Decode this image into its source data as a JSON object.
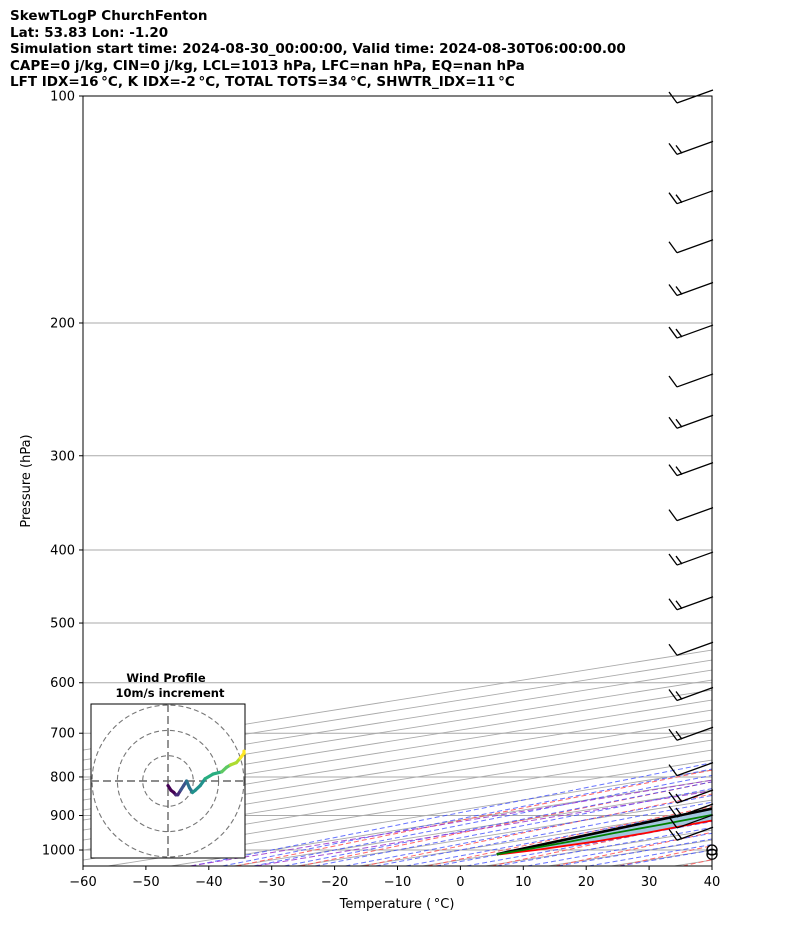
{
  "header": {
    "lines": [
      "SkewTLogP ChurchFenton",
      "Lat: 53.83   Lon: -1.20",
      "Simulation start time: 2024-08-30_00:00:00, Valid time: 2024-08-30T06:00:00.00",
      "CAPE=0 j/kg, CIN=0 j/kg, LCL=1013 hPa, LFC=nan hPa, EQ=nan hPa",
      "LFT IDX=16 °C, K IDX=-2 °C, TOTAL TOTS=34 °C, SHWTR_IDX=11 °C"
    ]
  },
  "chart_data": [
    {
      "type": "line",
      "subtype": "skew-T log-P",
      "xlabel": "Temperature ( °C)",
      "ylabel": "Pressure (hPa)",
      "xlim": [
        -60,
        40
      ],
      "ylim": [
        1050,
        100
      ],
      "y_scale": "log",
      "x_ticks": [
        -60,
        -50,
        -40,
        -30,
        -20,
        -10,
        0,
        10,
        20,
        30,
        40
      ],
      "x_tick_labels": [
        "−60",
        "−50",
        "−40",
        "−30",
        "−20",
        "−10",
        "0",
        "10",
        "20",
        "30",
        "40"
      ],
      "y_ticks": [
        1000,
        900,
        800,
        700,
        600,
        500,
        400,
        300,
        200,
        100
      ],
      "grid": true,
      "colors": {
        "temperature": "#ff0000",
        "dewpoint": "#008000",
        "parcel": "#000000",
        "shading": "#a3c6e0",
        "dry_adiabat": "#ff5555",
        "moist_adiabat": "#3344ff",
        "mixing_ratio": "#9933cc",
        "isotherm": "#aaaaaa"
      },
      "series": [
        {
          "name": "temperature",
          "pressure": [
            1013,
            1000,
            975,
            950,
            925,
            900,
            850,
            800,
            750,
            700,
            650,
            600,
            550,
            500,
            450,
            400,
            350,
            300,
            275,
            250,
            225,
            200,
            175,
            150,
            125,
            100
          ],
          "values": [
            10.5,
            12.0,
            13.0,
            12.5,
            11.0,
            10.0,
            8.5,
            7.0,
            5.5,
            3.6,
            0.5,
            -2.6,
            -6.0,
            -10.0,
            -15.0,
            -21.5,
            -28.5,
            -37.0,
            -42.5,
            -47.5,
            -52.5,
            -57.0,
            -60.5,
            -65.0,
            -70.5,
            -75.0
          ]
        },
        {
          "name": "dewpoint",
          "pressure": [
            1013,
            1000,
            975,
            950,
            925,
            900,
            850,
            800,
            750,
            700,
            650,
            600,
            550,
            500,
            450,
            400,
            350,
            300,
            275,
            250,
            225,
            200,
            175,
            150,
            125,
            100
          ],
          "values": [
            10.0,
            10.0,
            9.0,
            7.5,
            6.5,
            5.0,
            2.0,
            -3.0,
            -14.0,
            -24.0,
            -31.0,
            -33.0,
            -40.0,
            -50.0,
            -53.0,
            -47.0,
            -56.0,
            -59.0,
            -56.0,
            -64.0,
            -72.0,
            -78.5,
            -86.0,
            -95.0,
            -102.0,
            -105.0
          ]
        },
        {
          "name": "parcel",
          "pressure": [
            1013,
            1000,
            950,
            900,
            850,
            800,
            750,
            700,
            650,
            600,
            550,
            500,
            450,
            400,
            350,
            300,
            250,
            200,
            150,
            100
          ],
          "values": [
            10.0,
            8.9,
            4.7,
            0.3,
            -4.3,
            -9.2,
            -14.4,
            -20.0,
            -26.0,
            -32.5,
            -39.6,
            -47.4,
            -56.0,
            -65.5,
            -76.3,
            -88.6,
            -103.1,
            -120.6,
            -142.9,
            -174.5
          ]
        }
      ],
      "wind_barb_pressures": [
        100,
        117,
        136,
        158,
        180,
        205,
        238,
        270,
        312,
        358,
        410,
        470,
        540,
        620,
        700,
        780,
        848,
        885,
        915,
        950,
        1000,
        1013
      ]
    },
    {
      "type": "line",
      "subtype": "hodograph",
      "title": "Wind Profile",
      "subtitle": "10m/s increment",
      "ring_increment": 10,
      "x": [
        0,
        3,
        6,
        8,
        10,
        13,
        16,
        19,
        22,
        25,
        28,
        33,
        38,
        46,
        55,
        60,
        64,
        70,
        74,
        78,
        80
      ],
      "y": [
        -2,
        -4,
        -5,
        -6,
        -6,
        -4,
        -2,
        0,
        -3,
        -5,
        -4,
        -2,
        1,
        3,
        4,
        6,
        7,
        8,
        10,
        12,
        13
      ]
    }
  ]
}
